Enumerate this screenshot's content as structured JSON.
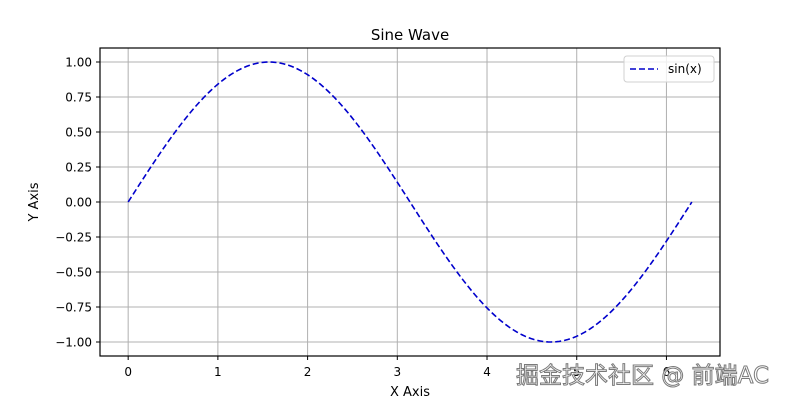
{
  "chart_data": {
    "type": "line",
    "title": "Sine Wave",
    "xlabel": "X Axis",
    "ylabel": "Y Axis",
    "xlim": [
      -0.314,
      6.597
    ],
    "ylim": [
      -1.1,
      1.1
    ],
    "xticks": [
      0,
      1,
      2,
      3,
      4,
      5,
      6
    ],
    "xtick_labels": [
      "0",
      "1",
      "2",
      "3",
      "4",
      "5",
      "6"
    ],
    "yticks": [
      1.0,
      0.75,
      0.5,
      0.25,
      0.0,
      -0.25,
      -0.5,
      -0.75,
      -1.0
    ],
    "ytick_labels": [
      "1.00",
      "0.75",
      "0.50",
      "0.25",
      "0.00",
      "−0.25",
      "−0.50",
      "−0.75",
      "−1.00"
    ],
    "grid": true,
    "legend_position": "upper right",
    "series": [
      {
        "name": "sin(x)",
        "color": "#0000cc",
        "linestyle": "dashed",
        "function": "sin(x)",
        "x_range": [
          0,
          6.2832
        ],
        "x": [
          0,
          0.5,
          1.0,
          1.5708,
          2.0,
          2.5,
          3.0,
          3.1416,
          3.5,
          4.0,
          4.5,
          4.7124,
          5.0,
          5.5,
          6.0,
          6.2832
        ],
        "values": [
          0.0,
          0.479,
          0.841,
          1.0,
          0.909,
          0.598,
          0.141,
          0.0,
          -0.351,
          -0.757,
          -0.978,
          -1.0,
          -0.959,
          -0.706,
          -0.279,
          0.0
        ]
      }
    ]
  },
  "watermark": "掘金技术社区 @ 前端AC"
}
